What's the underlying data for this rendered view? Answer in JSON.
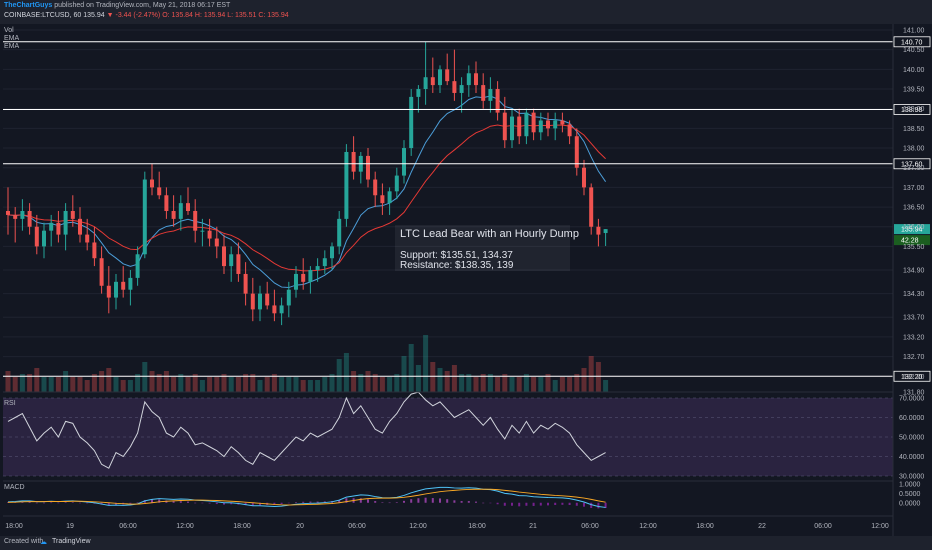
{
  "header": {
    "author": "TheChartGuys",
    "published": "published on TradingView.com, May 21, 2018 06:17 EST",
    "symbol": "COINBASE:LTCUSD, 60",
    "last": "135.94",
    "change": "-3.44 (-2.47%)",
    "ohlc": "O: 135.84 H: 135.94 L: 135.51 C: 135.94"
  },
  "legend": {
    "vol": "Vol",
    "ema1": "EMA",
    "ema2": "EMA",
    "rsi": "RSI",
    "macd": "MACD"
  },
  "footer": {
    "created_with": "Created with",
    "brand": "TradingView"
  },
  "annotation": {
    "title": "LTC Lead Bear with an Hourly Dump",
    "support": "Support: $135.51, 134.37",
    "resistance": "Resistance: $138.35, 139"
  },
  "colors": {
    "background": "#131722",
    "up": "#26a69a",
    "down": "#ef5350",
    "ema_fast": "#4c9ed9",
    "ema_slow": "#e53935",
    "rsi_line": "#d1d4dc",
    "rsi_band": "#2a2340",
    "macd_line": "#4fc3f7",
    "signal_line": "#f9a825",
    "level_line": "#ffffff"
  },
  "chart_data": {
    "type": "candlestick",
    "ylim": [
      131.8,
      141.0
    ],
    "price_ticks": [
      "141.00",
      "140.50",
      "140.00",
      "139.50",
      "139.00",
      "138.50",
      "138.00",
      "137.50",
      "137.00",
      "136.50",
      "136.00",
      "135.50",
      "134.90",
      "134.30",
      "133.70",
      "133.20",
      "132.70",
      "132.20",
      "131.80"
    ],
    "levels": [
      {
        "value": 140.7,
        "label": "140.70"
      },
      {
        "value": 138.98,
        "label": "138.98"
      },
      {
        "value": 137.6,
        "label": "137.60"
      },
      {
        "value": 132.2,
        "label": "132.20"
      }
    ],
    "last_price": {
      "value": 135.94,
      "label": "135.94",
      "rsi_label": "42.28"
    },
    "x_ticks": [
      "18:00",
      "19",
      "06:00",
      "12:00",
      "18:00",
      "20",
      "06:00",
      "12:00",
      "18:00",
      "21",
      "06:00",
      "12:00",
      "18:00",
      "22",
      "06:00",
      "12:00"
    ],
    "candles": [
      {
        "o": 136.4,
        "h": 137.0,
        "l": 135.8,
        "c": 136.3
      },
      {
        "o": 136.3,
        "h": 136.5,
        "l": 135.6,
        "c": 136.2
      },
      {
        "o": 136.2,
        "h": 136.7,
        "l": 135.9,
        "c": 136.4
      },
      {
        "o": 136.4,
        "h": 136.6,
        "l": 135.8,
        "c": 136.0
      },
      {
        "o": 136.0,
        "h": 136.3,
        "l": 135.3,
        "c": 135.5
      },
      {
        "o": 135.5,
        "h": 136.1,
        "l": 135.2,
        "c": 135.9
      },
      {
        "o": 135.9,
        "h": 136.3,
        "l": 135.5,
        "c": 136.1
      },
      {
        "o": 136.1,
        "h": 136.4,
        "l": 135.6,
        "c": 135.8
      },
      {
        "o": 135.8,
        "h": 136.6,
        "l": 135.4,
        "c": 136.4
      },
      {
        "o": 136.4,
        "h": 136.8,
        "l": 136.0,
        "c": 136.2
      },
      {
        "o": 136.2,
        "h": 136.5,
        "l": 135.6,
        "c": 135.8
      },
      {
        "o": 135.8,
        "h": 136.2,
        "l": 135.4,
        "c": 135.6
      },
      {
        "o": 135.6,
        "h": 136.0,
        "l": 135.0,
        "c": 135.2
      },
      {
        "o": 135.2,
        "h": 135.5,
        "l": 134.3,
        "c": 134.5
      },
      {
        "o": 134.5,
        "h": 135.0,
        "l": 133.8,
        "c": 134.2
      },
      {
        "o": 134.2,
        "h": 134.8,
        "l": 133.9,
        "c": 134.6
      },
      {
        "o": 134.6,
        "h": 135.0,
        "l": 134.2,
        "c": 134.4
      },
      {
        "o": 134.4,
        "h": 134.9,
        "l": 134.0,
        "c": 134.7
      },
      {
        "o": 134.7,
        "h": 135.5,
        "l": 134.5,
        "c": 135.3
      },
      {
        "o": 135.3,
        "h": 137.4,
        "l": 135.2,
        "c": 137.2
      },
      {
        "o": 137.2,
        "h": 137.6,
        "l": 136.8,
        "c": 137.0
      },
      {
        "o": 137.0,
        "h": 137.4,
        "l": 136.7,
        "c": 136.8
      },
      {
        "o": 136.8,
        "h": 137.0,
        "l": 136.2,
        "c": 136.4
      },
      {
        "o": 136.4,
        "h": 136.8,
        "l": 136.0,
        "c": 136.2
      },
      {
        "o": 136.2,
        "h": 136.8,
        "l": 135.9,
        "c": 136.6
      },
      {
        "o": 136.6,
        "h": 137.0,
        "l": 136.3,
        "c": 136.4
      },
      {
        "o": 136.4,
        "h": 136.7,
        "l": 135.6,
        "c": 135.9
      },
      {
        "o": 135.9,
        "h": 136.2,
        "l": 135.5,
        "c": 135.9
      },
      {
        "o": 135.9,
        "h": 136.2,
        "l": 135.5,
        "c": 135.7
      },
      {
        "o": 135.7,
        "h": 136.0,
        "l": 135.2,
        "c": 135.5
      },
      {
        "o": 135.5,
        "h": 135.8,
        "l": 134.8,
        "c": 135.0
      },
      {
        "o": 135.0,
        "h": 135.5,
        "l": 134.6,
        "c": 135.3
      },
      {
        "o": 135.3,
        "h": 135.6,
        "l": 134.6,
        "c": 134.8
      },
      {
        "o": 134.8,
        "h": 135.1,
        "l": 134.0,
        "c": 134.3
      },
      {
        "o": 134.3,
        "h": 134.7,
        "l": 133.6,
        "c": 133.9
      },
      {
        "o": 133.9,
        "h": 134.5,
        "l": 133.6,
        "c": 134.3
      },
      {
        "o": 134.3,
        "h": 134.6,
        "l": 133.9,
        "c": 134.0
      },
      {
        "o": 134.0,
        "h": 134.4,
        "l": 133.6,
        "c": 133.8
      },
      {
        "o": 133.8,
        "h": 134.2,
        "l": 133.5,
        "c": 134.0
      },
      {
        "o": 134.0,
        "h": 134.6,
        "l": 133.7,
        "c": 134.4
      },
      {
        "o": 134.4,
        "h": 135.0,
        "l": 134.2,
        "c": 134.8
      },
      {
        "o": 134.8,
        "h": 135.2,
        "l": 134.4,
        "c": 134.6
      },
      {
        "o": 134.6,
        "h": 135.0,
        "l": 134.3,
        "c": 134.9
      },
      {
        "o": 134.9,
        "h": 135.2,
        "l": 134.6,
        "c": 135.0
      },
      {
        "o": 135.0,
        "h": 135.4,
        "l": 134.8,
        "c": 135.2
      },
      {
        "o": 135.2,
        "h": 135.6,
        "l": 134.9,
        "c": 135.5
      },
      {
        "o": 135.5,
        "h": 136.4,
        "l": 135.3,
        "c": 136.2
      },
      {
        "o": 136.2,
        "h": 138.1,
        "l": 136.0,
        "c": 137.9
      },
      {
        "o": 137.9,
        "h": 138.3,
        "l": 137.2,
        "c": 137.4
      },
      {
        "o": 137.4,
        "h": 137.9,
        "l": 137.1,
        "c": 137.8
      },
      {
        "o": 137.8,
        "h": 138.0,
        "l": 137.0,
        "c": 137.2
      },
      {
        "o": 137.2,
        "h": 137.4,
        "l": 136.5,
        "c": 136.8
      },
      {
        "o": 136.8,
        "h": 137.1,
        "l": 136.3,
        "c": 136.6
      },
      {
        "o": 136.6,
        "h": 137.0,
        "l": 136.3,
        "c": 136.9
      },
      {
        "o": 136.9,
        "h": 137.5,
        "l": 136.7,
        "c": 137.3
      },
      {
        "o": 137.3,
        "h": 138.2,
        "l": 137.1,
        "c": 138.0
      },
      {
        "o": 138.0,
        "h": 139.5,
        "l": 137.8,
        "c": 139.3
      },
      {
        "o": 139.3,
        "h": 139.6,
        "l": 138.9,
        "c": 139.5
      },
      {
        "o": 139.5,
        "h": 140.7,
        "l": 139.1,
        "c": 139.8
      },
      {
        "o": 139.8,
        "h": 140.3,
        "l": 139.4,
        "c": 139.6
      },
      {
        "o": 139.6,
        "h": 140.1,
        "l": 139.4,
        "c": 140.0
      },
      {
        "o": 140.0,
        "h": 140.4,
        "l": 139.6,
        "c": 139.7
      },
      {
        "o": 139.7,
        "h": 140.5,
        "l": 139.2,
        "c": 139.4
      },
      {
        "o": 139.4,
        "h": 139.8,
        "l": 138.9,
        "c": 139.6
      },
      {
        "o": 139.6,
        "h": 140.1,
        "l": 139.3,
        "c": 139.9
      },
      {
        "o": 139.9,
        "h": 140.2,
        "l": 139.4,
        "c": 139.6
      },
      {
        "o": 139.6,
        "h": 139.9,
        "l": 139.0,
        "c": 139.2
      },
      {
        "o": 139.2,
        "h": 139.8,
        "l": 138.9,
        "c": 139.5
      },
      {
        "o": 139.5,
        "h": 139.7,
        "l": 138.7,
        "c": 138.9
      },
      {
        "o": 138.9,
        "h": 139.3,
        "l": 138.0,
        "c": 138.2
      },
      {
        "o": 138.2,
        "h": 139.0,
        "l": 138.0,
        "c": 138.8
      },
      {
        "o": 138.8,
        "h": 139.0,
        "l": 138.1,
        "c": 138.3
      },
      {
        "o": 138.3,
        "h": 139.0,
        "l": 138.1,
        "c": 138.9
      },
      {
        "o": 138.9,
        "h": 139.0,
        "l": 138.2,
        "c": 138.4
      },
      {
        "o": 138.4,
        "h": 138.9,
        "l": 138.2,
        "c": 138.7
      },
      {
        "o": 138.7,
        "h": 138.9,
        "l": 138.3,
        "c": 138.5
      },
      {
        "o": 138.5,
        "h": 138.9,
        "l": 138.2,
        "c": 138.7
      },
      {
        "o": 138.7,
        "h": 138.9,
        "l": 138.4,
        "c": 138.6
      },
      {
        "o": 138.6,
        "h": 138.7,
        "l": 138.1,
        "c": 138.3
      },
      {
        "o": 138.3,
        "h": 138.5,
        "l": 137.3,
        "c": 137.5
      },
      {
        "o": 137.5,
        "h": 137.7,
        "l": 136.8,
        "c": 137.0
      },
      {
        "o": 137.0,
        "h": 137.1,
        "l": 135.8,
        "c": 136.0
      },
      {
        "o": 136.0,
        "h": 136.2,
        "l": 135.5,
        "c": 135.8
      },
      {
        "o": 135.84,
        "h": 135.94,
        "l": 135.51,
        "c": 135.94
      }
    ],
    "volume": [
      0.7,
      0.5,
      0.6,
      0.6,
      0.8,
      0.5,
      0.5,
      0.5,
      0.7,
      0.5,
      0.5,
      0.4,
      0.6,
      0.7,
      0.8,
      0.5,
      0.4,
      0.4,
      0.6,
      1.0,
      0.7,
      0.6,
      0.7,
      0.5,
      0.6,
      0.5,
      0.6,
      0.4,
      0.5,
      0.5,
      0.6,
      0.5,
      0.5,
      0.6,
      0.6,
      0.4,
      0.5,
      0.6,
      0.5,
      0.5,
      0.5,
      0.4,
      0.4,
      0.4,
      0.5,
      0.6,
      1.1,
      1.3,
      0.7,
      0.6,
      0.7,
      0.6,
      0.5,
      0.5,
      0.6,
      1.2,
      1.6,
      0.9,
      1.9,
      1.0,
      0.8,
      0.7,
      0.9,
      0.6,
      0.6,
      0.5,
      0.6,
      0.6,
      0.5,
      0.6,
      0.5,
      0.5,
      0.6,
      0.5,
      0.5,
      0.6,
      0.4,
      0.5,
      0.5,
      0.6,
      0.8,
      1.2,
      1.0,
      0.4
    ],
    "rsi": {
      "ylim": [
        30,
        70
      ],
      "ticks": [
        "70.0000",
        "60.0000",
        "50.0000",
        "40.0000",
        "30.0000"
      ],
      "values": [
        58,
        60,
        62,
        55,
        48,
        52,
        55,
        50,
        58,
        57,
        50,
        47,
        43,
        36,
        34,
        42,
        40,
        45,
        52,
        68,
        63,
        60,
        52,
        50,
        55,
        52,
        46,
        47,
        45,
        43,
        40,
        45,
        42,
        38,
        36,
        42,
        40,
        38,
        42,
        46,
        50,
        48,
        52,
        50,
        52,
        54,
        60,
        70,
        62,
        66,
        60,
        54,
        52,
        58,
        62,
        68,
        72,
        73,
        69,
        66,
        68,
        64,
        60,
        62,
        64,
        60,
        56,
        60,
        54,
        49,
        56,
        52,
        58,
        52,
        56,
        54,
        57,
        55,
        52,
        46,
        42,
        38,
        40,
        42
      ]
    },
    "macd": {
      "ylim": [
        -0.6,
        1.0
      ],
      "ticks": [
        "1.0000",
        "0.5000",
        "0.0000"
      ],
      "macd": [
        0.05,
        0.07,
        0.1,
        0.1,
        0.06,
        0.06,
        0.08,
        0.06,
        0.09,
        0.1,
        0.07,
        0.04,
        0.0,
        -0.07,
        -0.14,
        -0.13,
        -0.14,
        -0.12,
        -0.06,
        0.1,
        0.18,
        0.22,
        0.2,
        0.18,
        0.2,
        0.19,
        0.14,
        0.12,
        0.09,
        0.05,
        0.0,
        0.0,
        -0.04,
        -0.1,
        -0.16,
        -0.16,
        -0.18,
        -0.2,
        -0.18,
        -0.13,
        -0.08,
        -0.05,
        -0.03,
        -0.02,
        0.01,
        0.05,
        0.14,
        0.3,
        0.36,
        0.42,
        0.4,
        0.33,
        0.27,
        0.26,
        0.29,
        0.39,
        0.53,
        0.64,
        0.74,
        0.78,
        0.82,
        0.82,
        0.79,
        0.78,
        0.8,
        0.78,
        0.72,
        0.7,
        0.62,
        0.5,
        0.46,
        0.38,
        0.37,
        0.32,
        0.3,
        0.28,
        0.27,
        0.26,
        0.22,
        0.14,
        0.04,
        -0.1,
        -0.2,
        -0.25
      ],
      "signal": [
        0.02,
        0.03,
        0.05,
        0.06,
        0.06,
        0.06,
        0.07,
        0.07,
        0.07,
        0.08,
        0.08,
        0.07,
        0.05,
        0.03,
        0.0,
        -0.03,
        -0.05,
        -0.07,
        -0.07,
        -0.04,
        0.0,
        0.05,
        0.08,
        0.1,
        0.12,
        0.13,
        0.14,
        0.14,
        0.13,
        0.12,
        0.1,
        0.08,
        0.06,
        0.03,
        0.0,
        -0.03,
        -0.06,
        -0.09,
        -0.11,
        -0.12,
        -0.11,
        -0.1,
        -0.09,
        -0.08,
        -0.06,
        -0.04,
        0.0,
        0.06,
        0.12,
        0.18,
        0.22,
        0.24,
        0.25,
        0.25,
        0.26,
        0.29,
        0.34,
        0.4,
        0.47,
        0.53,
        0.59,
        0.63,
        0.66,
        0.69,
        0.71,
        0.72,
        0.72,
        0.72,
        0.7,
        0.66,
        0.62,
        0.57,
        0.53,
        0.49,
        0.45,
        0.42,
        0.39,
        0.37,
        0.34,
        0.3,
        0.25,
        0.18,
        0.1,
        0.03
      ]
    }
  }
}
